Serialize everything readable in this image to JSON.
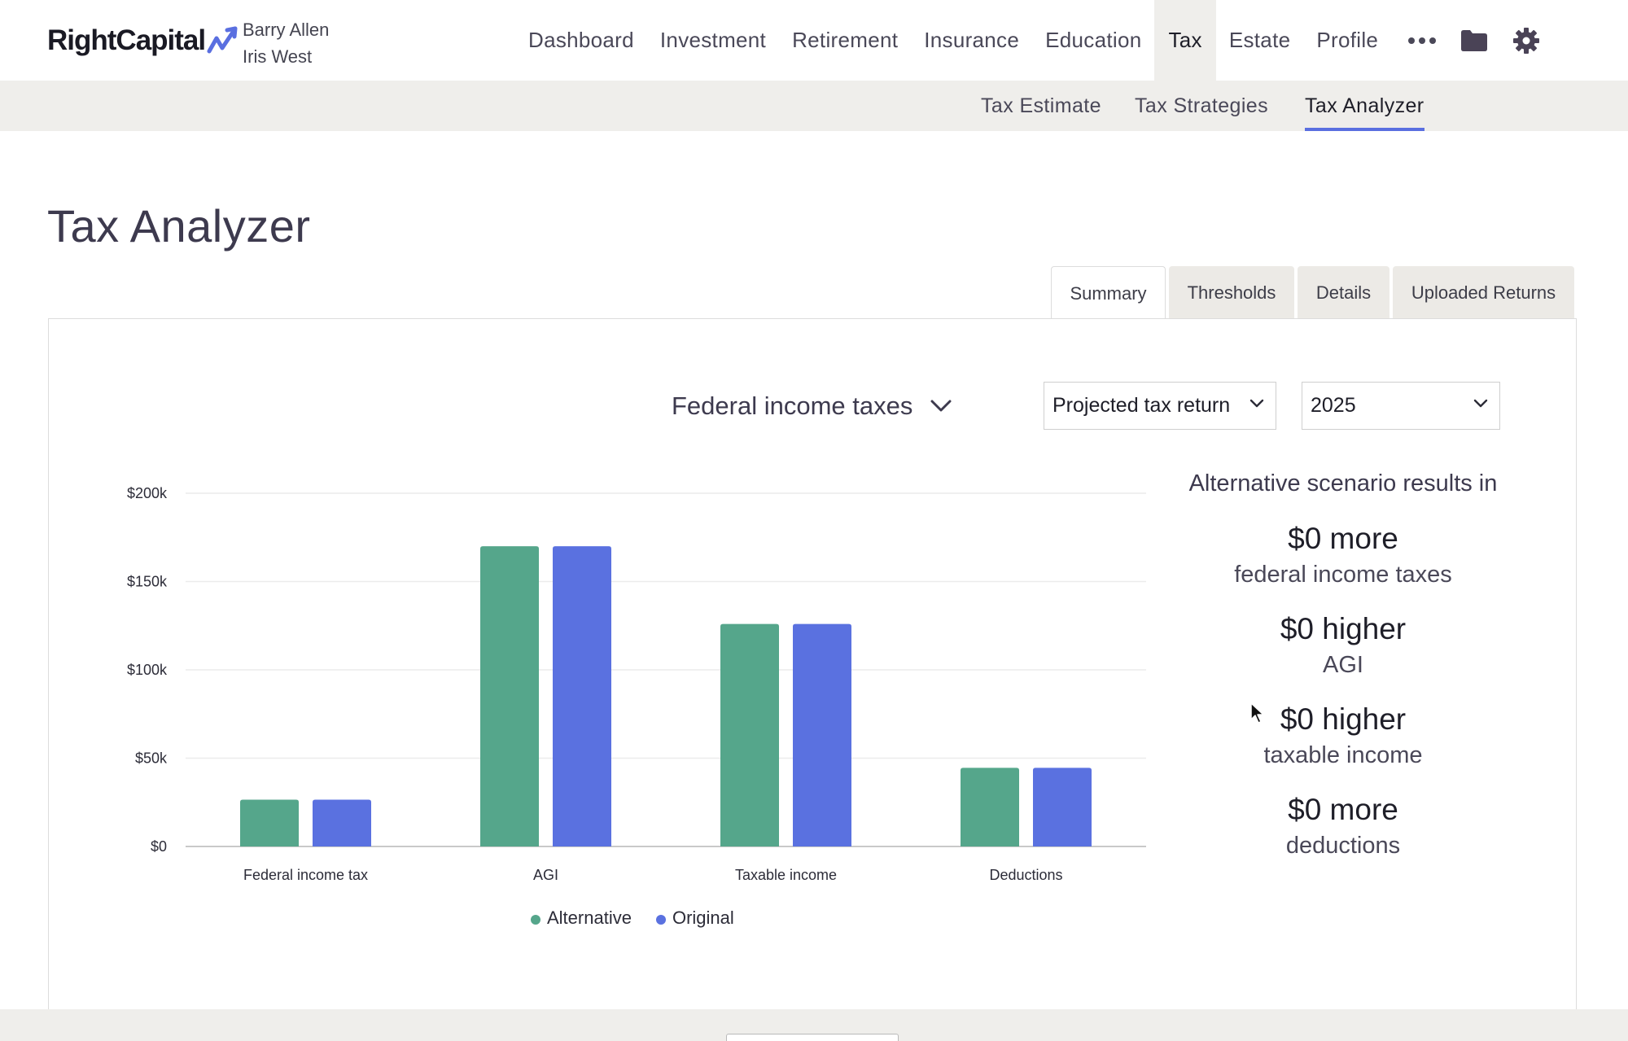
{
  "brand": {
    "name": "RightCapital",
    "logo_icon": "rising-arrow-icon"
  },
  "clients": [
    "Barry Allen",
    "Iris West"
  ],
  "nav": {
    "items": [
      "Dashboard",
      "Investment",
      "Retirement",
      "Insurance",
      "Education",
      "Tax",
      "Estate",
      "Profile"
    ],
    "active": "Tax",
    "more_icon": "more-dots-icon",
    "folder_icon": "folder-icon",
    "settings_icon": "gear-icon"
  },
  "subnav": {
    "items": [
      "Tax Estimate",
      "Tax Strategies",
      "Tax Analyzer"
    ],
    "active": "Tax Analyzer"
  },
  "page": {
    "title": "Tax Analyzer"
  },
  "tabs": {
    "items": [
      "Summary",
      "Thresholds",
      "Details",
      "Uploaded Returns"
    ],
    "active": "Summary"
  },
  "controls": {
    "metric": "Federal income taxes",
    "return_type": "Projected tax return",
    "year": "2025"
  },
  "chart_data": {
    "type": "bar",
    "categories": [
      "Federal income tax",
      "AGI",
      "Taxable income",
      "Deductions"
    ],
    "series": [
      {
        "name": "Alternative",
        "color": "#55a68b",
        "values": [
          26500,
          170000,
          126000,
          44500
        ]
      },
      {
        "name": "Original",
        "color": "#5a71e0",
        "values": [
          26500,
          170000,
          126000,
          44500
        ]
      }
    ],
    "y_ticks": [
      "$0",
      "$50k",
      "$100k",
      "$150k",
      "$200k"
    ],
    "ylim": [
      0,
      200000
    ],
    "grid": true,
    "legend": "bottom"
  },
  "summary": {
    "heading": "Alternative scenario results in",
    "items": [
      {
        "value": "$0 more",
        "label": "federal income taxes"
      },
      {
        "value": "$0 higher",
        "label": "AGI"
      },
      {
        "value": "$0 higher",
        "label": "taxable income"
      },
      {
        "value": "$0 more",
        "label": "deductions"
      }
    ]
  }
}
